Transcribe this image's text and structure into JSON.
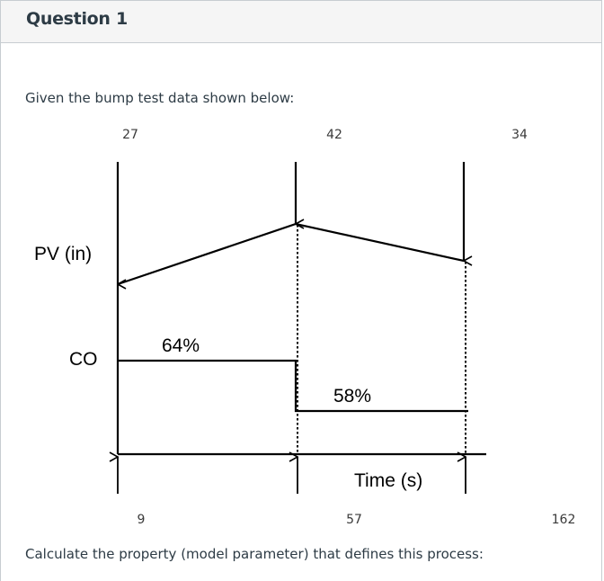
{
  "question": {
    "title": "Question 1",
    "prompt": "Given the bump test data shown below:",
    "footer": "Calculate the property (model parameter) that defines this process:"
  },
  "diagram": {
    "pv_label": "PV (in)",
    "co_label": "CO",
    "time_label": "Time (s)",
    "top_values": [
      "27",
      "42",
      "34"
    ],
    "bottom_values": [
      "9",
      "57",
      "162"
    ],
    "co_levels": [
      "64%",
      "58%"
    ]
  },
  "colors": {
    "ink": "#000000",
    "text": "#2d3b45",
    "header_bg": "#f5f5f5",
    "border": "#c7cdd1"
  }
}
